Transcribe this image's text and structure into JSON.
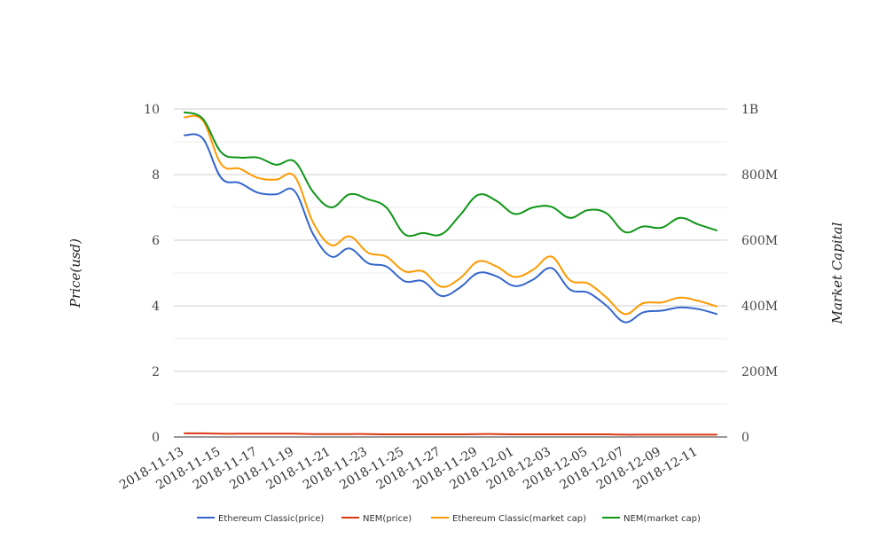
{
  "chart_data": {
    "type": "line",
    "ylabel_left": "Price(usd)",
    "ylabel_right": "Market Capital",
    "ylim_left": [
      0,
      10
    ],
    "ylim_right": [
      0,
      1000000000
    ],
    "yticks_left": [
      "0",
      "2",
      "4",
      "6",
      "8",
      "10"
    ],
    "yticks_right": [
      "0",
      "200M",
      "400M",
      "600M",
      "800M",
      "1B"
    ],
    "grid": true,
    "legend_position": "bottom-center",
    "x": [
      "2018-11-13",
      "2018-11-14",
      "2018-11-15",
      "2018-11-16",
      "2018-11-17",
      "2018-11-18",
      "2018-11-19",
      "2018-11-20",
      "2018-11-21",
      "2018-11-22",
      "2018-11-23",
      "2018-11-24",
      "2018-11-25",
      "2018-11-26",
      "2018-11-27",
      "2018-11-28",
      "2018-11-29",
      "2018-11-30",
      "2018-12-01",
      "2018-12-02",
      "2018-12-03",
      "2018-12-04",
      "2018-12-05",
      "2018-12-06",
      "2018-12-07",
      "2018-12-08",
      "2018-12-09",
      "2018-12-10",
      "2018-12-11",
      "2018-12-12"
    ],
    "xticks": [
      "2018-11-13",
      "2018-11-15",
      "2018-11-17",
      "2018-11-19",
      "2018-11-21",
      "2018-11-23",
      "2018-11-25",
      "2018-11-27",
      "2018-11-29",
      "2018-12-01",
      "2018-12-03",
      "2018-12-05",
      "2018-12-07",
      "2018-12-09",
      "2018-12-11"
    ],
    "series": [
      {
        "name": "Ethereum Classic(price)",
        "axis": "left",
        "color": "#3366cc",
        "values": [
          9.2,
          9.1,
          7.9,
          7.75,
          7.45,
          7.4,
          7.5,
          6.2,
          5.5,
          5.75,
          5.3,
          5.2,
          4.75,
          4.75,
          4.3,
          4.55,
          5.0,
          4.9,
          4.6,
          4.8,
          5.15,
          4.5,
          4.4,
          4.0,
          3.5,
          3.8,
          3.85,
          3.95,
          3.9,
          3.75
        ]
      },
      {
        "name": "NEM(price)",
        "axis": "left",
        "color": "#dc3912",
        "values": [
          0.11,
          0.11,
          0.1,
          0.1,
          0.1,
          0.1,
          0.1,
          0.09,
          0.09,
          0.09,
          0.09,
          0.08,
          0.08,
          0.08,
          0.08,
          0.08,
          0.09,
          0.09,
          0.08,
          0.08,
          0.08,
          0.08,
          0.08,
          0.08,
          0.07,
          0.07,
          0.07,
          0.07,
          0.07,
          0.07
        ]
      },
      {
        "name": "Ethereum Classic(market cap)",
        "axis": "right",
        "color": "#ff9900",
        "values": [
          975000000,
          965000000,
          832000000,
          818000000,
          790000000,
          785000000,
          795000000,
          655000000,
          585000000,
          612000000,
          562000000,
          550000000,
          505000000,
          505000000,
          458000000,
          483000000,
          535000000,
          520000000,
          488000000,
          510000000,
          550000000,
          478000000,
          468000000,
          425000000,
          375000000,
          408000000,
          410000000,
          425000000,
          415000000,
          398000000
        ]
      },
      {
        "name": "NEM(market cap)",
        "axis": "right",
        "color": "#109618",
        "values": [
          990000000,
          970000000,
          868000000,
          852000000,
          852000000,
          830000000,
          840000000,
          748000000,
          700000000,
          740000000,
          725000000,
          700000000,
          618000000,
          622000000,
          618000000,
          675000000,
          738000000,
          720000000,
          680000000,
          700000000,
          702000000,
          668000000,
          692000000,
          682000000,
          625000000,
          642000000,
          638000000,
          668000000,
          648000000,
          630000000
        ]
      }
    ]
  }
}
